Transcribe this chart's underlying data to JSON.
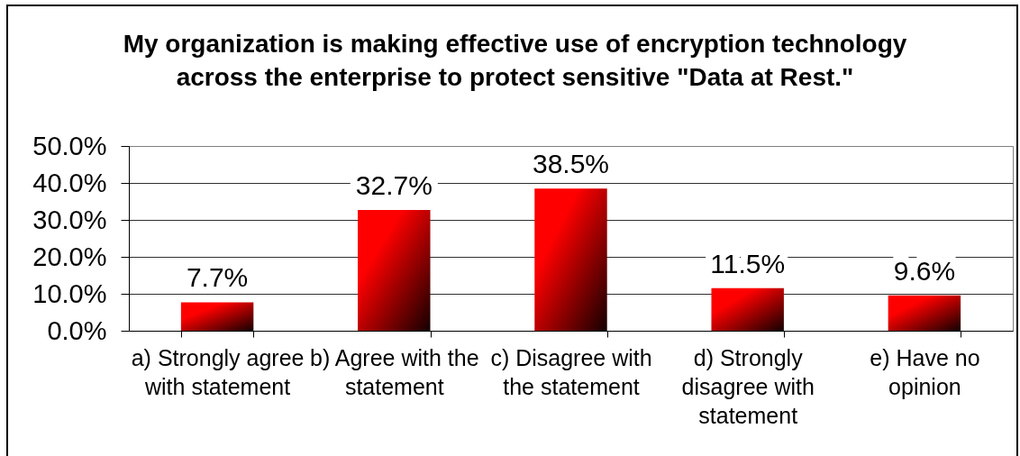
{
  "chart_data": {
    "type": "bar",
    "title": "My organization is making effective use of encryption technology across the enterprise to protect sensitive \"Data at Rest.\"",
    "categories": [
      "a) Strongly agree with statement",
      "b) Agree with the statement",
      "c) Disagree with the statement",
      "d) Strongly disagree with statement",
      "e) Have no opinion"
    ],
    "values": [
      7.7,
      32.7,
      38.5,
      11.5,
      9.6
    ],
    "color": "#ff0000",
    "value_labels": [
      "7.7%",
      "32.7%",
      "38.5%",
      "11.5%",
      "9.6%"
    ],
    "ylim": [
      0,
      50
    ],
    "yticks": [
      {
        "value": 0,
        "label": "0.0%"
      },
      {
        "value": 10,
        "label": "10.0%"
      },
      {
        "value": 20,
        "label": "20.0%"
      },
      {
        "value": 30,
        "label": "30.0%"
      },
      {
        "value": 40,
        "label": "40.0%"
      },
      {
        "value": 50,
        "label": "50.0%"
      }
    ],
    "grid": "y"
  }
}
